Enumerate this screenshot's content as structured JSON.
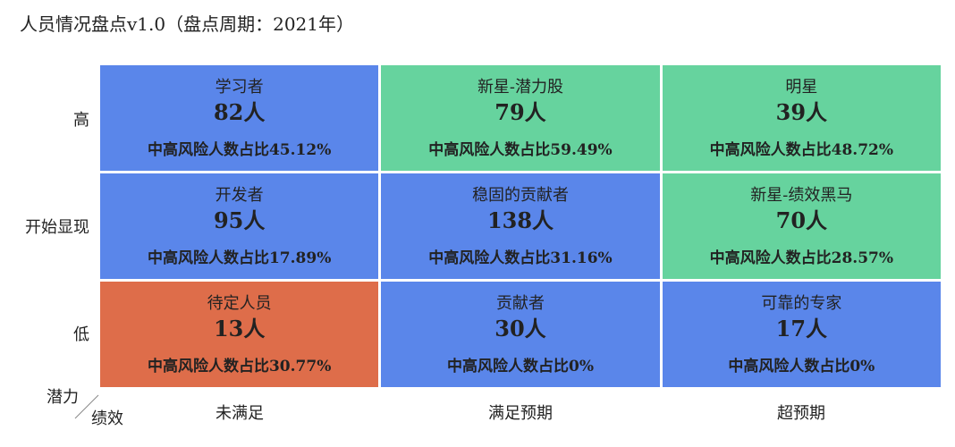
{
  "title": "人员情况盘点v1.0（盘点周期：2021年）",
  "colors": {
    "blue": "#5a86ea",
    "green": "#66d39e",
    "orange": "#de6d4a"
  },
  "chart_data": {
    "type": "table",
    "y_axis_name": "潜力",
    "x_axis_name": "绩效",
    "rows": [
      "高",
      "开始显现",
      "低"
    ],
    "columns": [
      "未满足",
      "满足预期",
      "超预期"
    ],
    "cells": [
      [
        {
          "name": "学习者",
          "count": "82人",
          "ratio": "中高风险人数占比45.12%",
          "color": "blue"
        },
        {
          "name": "新星-潜力股",
          "count": "79人",
          "ratio": "中高风险人数占比59.49%",
          "color": "green"
        },
        {
          "name": "明星",
          "count": "39人",
          "ratio": "中高风险人数占比48.72%",
          "color": "green"
        }
      ],
      [
        {
          "name": "开发者",
          "count": "95人",
          "ratio": "中高风险人数占比17.89%",
          "color": "blue"
        },
        {
          "name": "稳固的贡献者",
          "count": "138人",
          "ratio": "中高风险人数占比31.16%",
          "color": "blue"
        },
        {
          "name": "新星-绩效黑马",
          "count": "70人",
          "ratio": "中高风险人数占比28.57%",
          "color": "green"
        }
      ],
      [
        {
          "name": "待定人员",
          "count": "13人",
          "ratio": "中高风险人数占比30.77%",
          "color": "orange"
        },
        {
          "name": "贡献者",
          "count": "30人",
          "ratio": "中高风险人数占比0%",
          "color": "blue"
        },
        {
          "name": "可靠的专家",
          "count": "17人",
          "ratio": "中高风险人数占比0%",
          "color": "blue"
        }
      ]
    ]
  }
}
